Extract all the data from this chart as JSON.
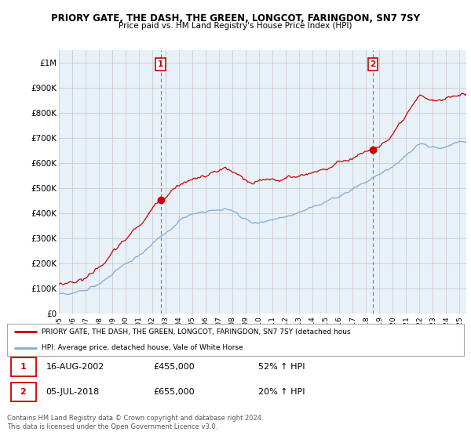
{
  "title": "PRIORY GATE, THE DASH, THE GREEN, LONGCOT, FARINGDON, SN7 7SY",
  "subtitle": "Price paid vs. HM Land Registry's House Price Index (HPI)",
  "ylabel_ticks": [
    "£0",
    "£100K",
    "£200K",
    "£300K",
    "£400K",
    "£500K",
    "£600K",
    "£700K",
    "£800K",
    "£900K",
    "£1M"
  ],
  "ylim": [
    0,
    1050000
  ],
  "xlim_start": 1995.0,
  "xlim_end": 2025.5,
  "sale1_x": 2002.62,
  "sale1_y": 455000,
  "sale1_label": "1",
  "sale2_x": 2018.5,
  "sale2_y": 655000,
  "sale2_label": "2",
  "red_line_color": "#cc0000",
  "blue_line_color": "#7aadda",
  "dashed_vline_color": "#ff4444",
  "plot_bg_color": "#e8f0f8",
  "legend_red_label": "PRIORY GATE, THE DASH, THE GREEN, LONGCOT, FARINGDON, SN7 7SY (detached hous",
  "legend_blue_label": "HPI: Average price, detached house, Vale of White Horse",
  "annotation1": [
    "1",
    "16-AUG-2002",
    "£455,000",
    "52% ↑ HPI"
  ],
  "annotation2": [
    "2",
    "05-JUL-2018",
    "£655,000",
    "20% ↑ HPI"
  ],
  "footer": "Contains HM Land Registry data © Crown copyright and database right 2024.\nThis data is licensed under the Open Government Licence v3.0.",
  "background_color": "#ffffff",
  "grid_color": "#cccccc"
}
